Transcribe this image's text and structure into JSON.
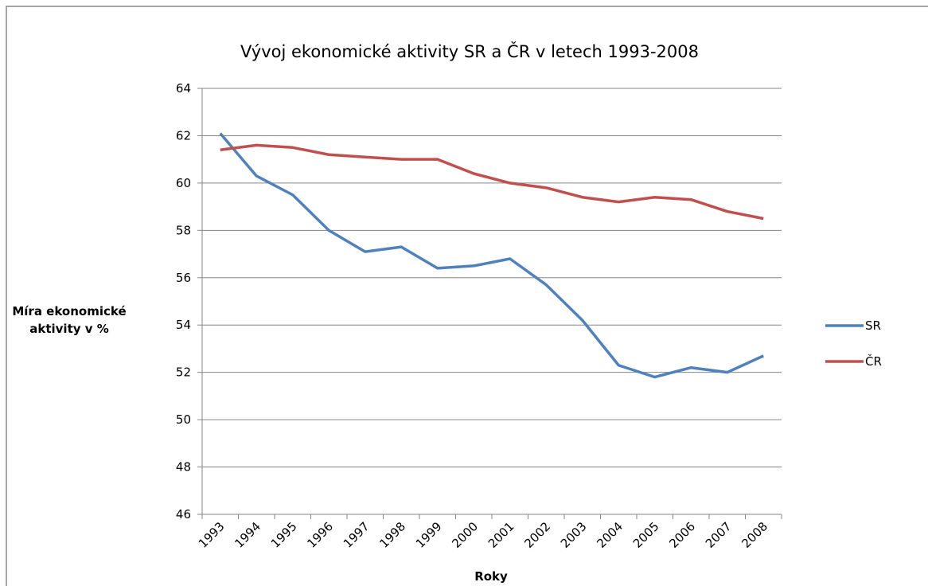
{
  "chart_data": {
    "type": "line",
    "title": "Vývoj ekonomické aktivity SR a ČR v letech 1993-2008",
    "x_label": "Roky",
    "y_label": "Míra ekonomické aktivity v %",
    "categories": [
      "1993",
      "1994",
      "1995",
      "1996",
      "1997",
      "1998",
      "1999",
      "2000",
      "2001",
      "2002",
      "2003",
      "2004",
      "2005",
      "2006",
      "2007",
      "2008"
    ],
    "series": [
      {
        "name": "SR",
        "color": "#4f81bd",
        "values": [
          62.1,
          60.3,
          59.5,
          58.0,
          57.1,
          57.3,
          56.4,
          56.5,
          56.8,
          55.7,
          54.2,
          52.3,
          51.8,
          52.2,
          52.0,
          52.7
        ]
      },
      {
        "name": "ČR",
        "color": "#c0504d",
        "values": [
          61.4,
          61.6,
          61.5,
          61.2,
          61.1,
          61.0,
          61.0,
          60.4,
          60.0,
          59.8,
          59.4,
          59.2,
          59.4,
          59.3,
          58.8,
          58.5
        ]
      }
    ],
    "ylim": [
      46,
      64
    ],
    "yticks": [
      46,
      48,
      50,
      52,
      54,
      56,
      58,
      60,
      62,
      64
    ],
    "grid": true,
    "legend": "right"
  }
}
